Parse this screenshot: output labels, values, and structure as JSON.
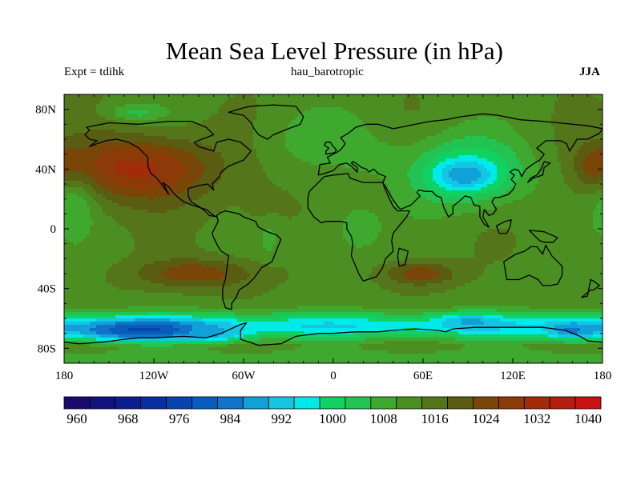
{
  "chart_data": {
    "type": "heatmap",
    "title": "Mean Sea Level Pressure (in hPa)",
    "left_label": "Expt = tdihk",
    "center_label": "hau_barotropic",
    "right_label": "JJA",
    "x_range": [
      -180,
      180
    ],
    "y_range": [
      -90,
      90
    ],
    "x_ticks": [
      {
        "value": -180,
        "label": "180"
      },
      {
        "value": -120,
        "label": "120W"
      },
      {
        "value": -60,
        "label": "60W"
      },
      {
        "value": 0,
        "label": "0"
      },
      {
        "value": 60,
        "label": "60E"
      },
      {
        "value": 120,
        "label": "120E"
      },
      {
        "value": 180,
        "label": "180"
      }
    ],
    "y_ticks": [
      {
        "value": 80,
        "label": "80N"
      },
      {
        "value": 40,
        "label": "40N"
      },
      {
        "value": 0,
        "label": "0"
      },
      {
        "value": -40,
        "label": "40S"
      },
      {
        "value": -80,
        "label": "80S"
      }
    ],
    "colorbar": {
      "levels": [
        958,
        962,
        966,
        970,
        974,
        978,
        982,
        986,
        990,
        994,
        998,
        1002,
        1006,
        1010,
        1014,
        1018,
        1022,
        1026,
        1030,
        1034,
        1038,
        1042
      ],
      "colors": [
        "#1a0a6e",
        "#11117f",
        "#0a1e8e",
        "#07309e",
        "#0645ad",
        "#0a5cbc",
        "#0f74c8",
        "#12a0d8",
        "#14c6e2",
        "#00eaea",
        "#0fd262",
        "#22c352",
        "#3fa82e",
        "#4b8e22",
        "#55751a",
        "#5a5c12",
        "#7a4608",
        "#8c3a08",
        "#a02c0a",
        "#b41e0e",
        "#c81212"
      ],
      "labels": [
        {
          "value": 960,
          "label": "960"
        },
        {
          "value": 968,
          "label": "968"
        },
        {
          "value": 976,
          "label": "976"
        },
        {
          "value": 984,
          "label": "984"
        },
        {
          "value": 992,
          "label": "992"
        },
        {
          "value": 1000,
          "label": "1000"
        },
        {
          "value": 1008,
          "label": "1008"
        },
        {
          "value": 1016,
          "label": "1016"
        },
        {
          "value": 1024,
          "label": "1024"
        },
        {
          "value": 1032,
          "label": "1032"
        },
        {
          "value": 1040,
          "label": "1040"
        }
      ]
    },
    "background_value": 1013,
    "anomalies": [
      {
        "name": "north-pacific-high",
        "lon": -128,
        "lat": 40,
        "rlon": 52,
        "rlat": 24,
        "value": 1028
      },
      {
        "name": "north-pacific-high-core",
        "lon": -130,
        "lat": 41,
        "rlon": 30,
        "rlat": 12,
        "value": 1031
      },
      {
        "name": "west-pacific-ridge",
        "lon": 178,
        "lat": 41,
        "rlon": 15,
        "rlat": 14,
        "value": 1026
      },
      {
        "name": "arctic-low",
        "lon": -132,
        "lat": 78,
        "rlon": 20,
        "rlat": 6,
        "value": 1006
      },
      {
        "name": "north-atlantic-low",
        "lon": -8,
        "lat": 60,
        "rlon": 40,
        "rlat": 20,
        "value": 1008
      },
      {
        "name": "europe-low",
        "lon": 30,
        "lat": 48,
        "rlon": 18,
        "rlat": 10,
        "value": 1008
      },
      {
        "name": "asian-monsoon-low-outer",
        "lon": 88,
        "lat": 40,
        "rlon": 42,
        "rlat": 26,
        "value": 1005
      },
      {
        "name": "asian-monsoon-low",
        "lon": 88,
        "lat": 37,
        "rlon": 32,
        "rlat": 18,
        "value": 996
      },
      {
        "name": "asian-monsoon-low-core",
        "lon": 88,
        "lat": 36,
        "rlon": 16,
        "rlat": 8,
        "value": 986
      },
      {
        "name": "africa-low",
        "lon": 12,
        "lat": 0,
        "rlon": 22,
        "rlat": 24,
        "value": 1008
      },
      {
        "name": "south-america-low",
        "lon": -43,
        "lat": -3,
        "rlon": 6,
        "rlat": 14,
        "value": 1008
      },
      {
        "name": "south-pacific-high",
        "lon": -92,
        "lat": -30,
        "rlon": 40,
        "rlat": 10,
        "value": 1025
      },
      {
        "name": "south-indian-high",
        "lon": 58,
        "lat": -30,
        "rlon": 24,
        "rlat": 8,
        "value": 1025
      },
      {
        "name": "north-pacific-west-low",
        "lon": -174,
        "lat": 12,
        "rlon": 14,
        "rlat": 20,
        "value": 1008
      },
      {
        "name": "tropical-pacific-high",
        "lon": -50,
        "lat": 15,
        "rlon": 22,
        "rlat": 16,
        "value": 1016
      }
    ],
    "southern_band_lat": -65,
    "southern_band_value": 995,
    "southern_band_lows": [
      {
        "name": "amundsen-low",
        "lon": -130,
        "lat": -68,
        "rlon": 50,
        "rlat": 7,
        "value": 978
      },
      {
        "name": "bellingshausen-low",
        "lon": -80,
        "lat": -70,
        "rlon": 20,
        "rlat": 5,
        "value": 988
      },
      {
        "name": "ross-low",
        "lon": 160,
        "lat": -68,
        "rlon": 16,
        "rlat": 6,
        "value": 983
      },
      {
        "name": "south-indian-low",
        "lon": 90,
        "lat": -62,
        "rlon": 20,
        "rlat": 5,
        "value": 990
      }
    ],
    "antarctica_value": 1008
  }
}
